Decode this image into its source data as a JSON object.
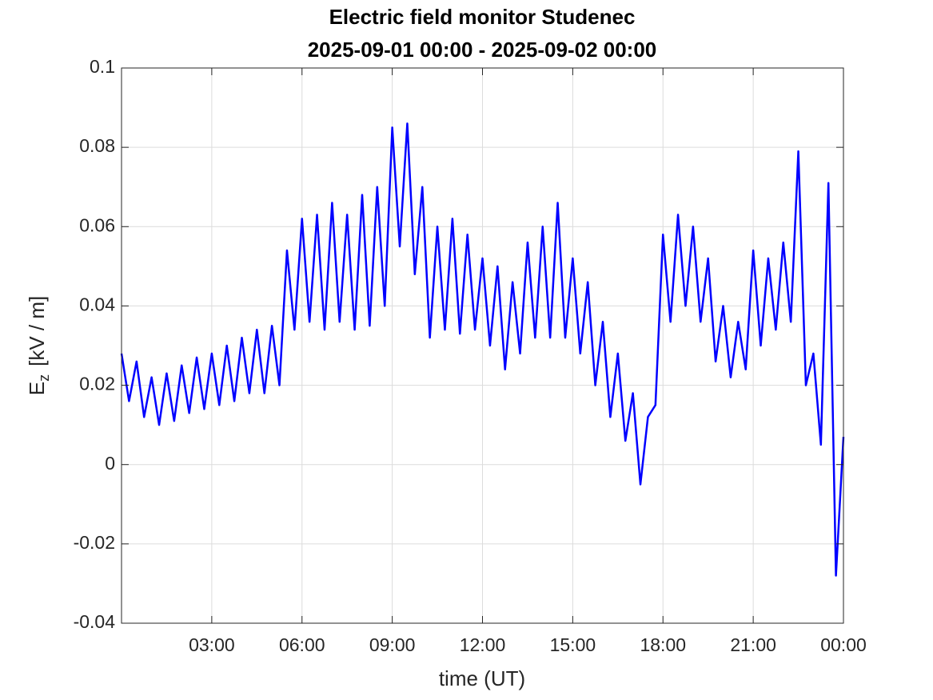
{
  "chart_data": {
    "type": "line",
    "title": "Electric field monitor Studenec",
    "subtitle": "2025-09-01 00:00 - 2025-09-02 00:00",
    "xlabel": "time (UT)",
    "ylabel": {
      "main": "E",
      "sub": "z",
      "unit": "[kV / m]"
    },
    "xlim": [
      0,
      24
    ],
    "xticks": [
      {
        "value": 3,
        "label": "03:00"
      },
      {
        "value": 6,
        "label": "06:00"
      },
      {
        "value": 9,
        "label": "09:00"
      },
      {
        "value": 12,
        "label": "12:00"
      },
      {
        "value": 15,
        "label": "15:00"
      },
      {
        "value": 18,
        "label": "18:00"
      },
      {
        "value": 21,
        "label": "21:00"
      },
      {
        "value": 24,
        "label": "00:00"
      }
    ],
    "ylim": [
      -0.04,
      0.1
    ],
    "yticks": [
      -0.04,
      -0.02,
      0,
      0.02,
      0.04,
      0.06,
      0.08,
      0.1
    ],
    "grid": true,
    "x": [
      0,
      0.25,
      0.5,
      0.75,
      1,
      1.25,
      1.5,
      1.75,
      2,
      2.25,
      2.5,
      2.75,
      3,
      3.25,
      3.5,
      3.75,
      4,
      4.25,
      4.5,
      4.75,
      5,
      5.25,
      5.5,
      5.75,
      6,
      6.25,
      6.5,
      6.75,
      7,
      7.25,
      7.5,
      7.75,
      8,
      8.25,
      8.5,
      8.75,
      9,
      9.25,
      9.5,
      9.75,
      10,
      10.25,
      10.5,
      10.75,
      11,
      11.25,
      11.5,
      11.75,
      12,
      12.25,
      12.5,
      12.75,
      13,
      13.25,
      13.5,
      13.75,
      14,
      14.25,
      14.5,
      14.75,
      15,
      15.25,
      15.5,
      15.75,
      16,
      16.25,
      16.5,
      16.75,
      17,
      17.25,
      17.5,
      17.75,
      18,
      18.25,
      18.5,
      18.75,
      19,
      19.25,
      19.5,
      19.75,
      20,
      20.25,
      20.5,
      20.75,
      21,
      21.25,
      21.5,
      21.75,
      22,
      22.25,
      22.5,
      22.75,
      23,
      23.25,
      23.5,
      23.75,
      24
    ],
    "series": [
      {
        "name": "Ez",
        "color": "#0000ff",
        "values": [
          0.028,
          0.016,
          0.026,
          0.012,
          0.022,
          0.01,
          0.023,
          0.011,
          0.025,
          0.013,
          0.027,
          0.014,
          0.028,
          0.015,
          0.03,
          0.016,
          0.032,
          0.018,
          0.034,
          0.018,
          0.035,
          0.02,
          0.054,
          0.034,
          0.062,
          0.036,
          0.063,
          0.034,
          0.066,
          0.036,
          0.063,
          0.034,
          0.068,
          0.035,
          0.07,
          0.04,
          0.085,
          0.055,
          0.086,
          0.048,
          0.07,
          0.032,
          0.06,
          0.034,
          0.062,
          0.033,
          0.058,
          0.034,
          0.052,
          0.03,
          0.05,
          0.024,
          0.046,
          0.028,
          0.056,
          0.032,
          0.06,
          0.032,
          0.066,
          0.032,
          0.052,
          0.028,
          0.046,
          0.02,
          0.036,
          0.012,
          0.028,
          0.006,
          0.018,
          -0.005,
          0.012,
          0.015,
          0.058,
          0.036,
          0.063,
          0.04,
          0.06,
          0.036,
          0.052,
          0.026,
          0.04,
          0.022,
          0.036,
          0.024,
          0.054,
          0.03,
          0.052,
          0.034,
          0.056,
          0.036,
          0.079,
          0.02,
          0.028,
          0.005,
          0.071,
          -0.028,
          0.007
        ]
      }
    ]
  }
}
